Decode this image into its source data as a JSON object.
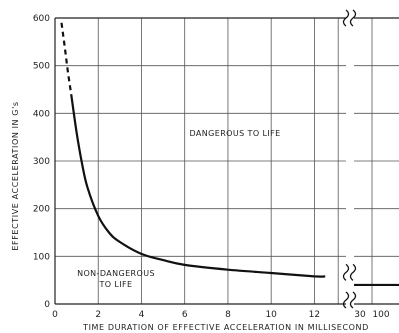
{
  "chart_data": {
    "type": "line",
    "title": "",
    "xlabel": "TIME DURATION OF EFFECTIVE ACCELERATION IN MILLISECOND",
    "ylabel": "EFFECTIVE ACCELERATION IN G's",
    "xlim": [
      0,
      13.6
    ],
    "ylim": [
      0,
      600
    ],
    "x_ticks": [
      "0",
      "2",
      "4",
      "6",
      "8",
      "10",
      "12",
      "30",
      "100"
    ],
    "y_ticks": [
      "0",
      "100",
      "200",
      "300",
      "400",
      "500",
      "600"
    ],
    "grid": true,
    "annotations": [
      {
        "text": "DANGEROUS TO LIFE",
        "region": "above-curve"
      },
      {
        "text": "NON-DANGEROUS",
        "region": "below-curve"
      },
      {
        "text": "TO LIFE",
        "region": "below-curve"
      }
    ],
    "series": [
      {
        "dashed_segment": {
          "x": [
            0.3,
            0.45,
            0.6,
            0.75
          ],
          "y": [
            590,
            540,
            485,
            440
          ]
        },
        "x": [
          0.75,
          1.0,
          1.25,
          1.5,
          2.0,
          2.5,
          3.0,
          4.0,
          5.0,
          6.0,
          8.0,
          10.0,
          12.0,
          12.5
        ],
        "y": [
          440,
          360,
          295,
          245,
          185,
          150,
          130,
          105,
          92,
          82,
          72,
          65,
          58,
          58
        ]
      }
    ],
    "broken_axis_segment": {
      "x_labels": [
        "30",
        "100"
      ],
      "y": 40
    }
  }
}
